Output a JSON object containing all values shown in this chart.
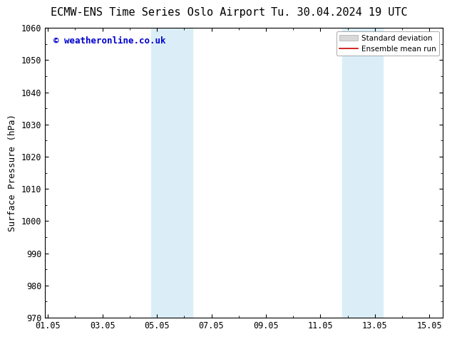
{
  "title_left": "ECMW-ENS Time Series Oslo Airport",
  "title_right": "Tu. 30.04.2024 19 UTC",
  "ylabel": "Surface Pressure (hPa)",
  "watermark": "© weatheronline.co.uk",
  "watermark_color": "#0000cc",
  "bg_color": "#ffffff",
  "plot_bg_color": "#ffffff",
  "ylim": [
    970,
    1060
  ],
  "yticks": [
    970,
    980,
    990,
    1000,
    1010,
    1020,
    1030,
    1040,
    1050,
    1060
  ],
  "xtick_labels": [
    "01.05",
    "03.05",
    "05.05",
    "07.05",
    "09.05",
    "11.05",
    "13.05",
    "15.05"
  ],
  "xtick_positions": [
    0,
    2,
    4,
    6,
    8,
    10,
    12,
    14
  ],
  "xlim": [
    -0.1,
    14.5
  ],
  "shaded_bands": [
    {
      "x_start": 3.8,
      "x_end": 5.3,
      "color": "#dbeef8"
    },
    {
      "x_start": 10.8,
      "x_end": 12.3,
      "color": "#dbeef8"
    }
  ],
  "legend_std_dev_color": "#d8d8d8",
  "legend_mean_color": "#cc0000",
  "title_fontsize": 11,
  "tick_fontsize": 8.5,
  "ylabel_fontsize": 9,
  "watermark_fontsize": 9
}
